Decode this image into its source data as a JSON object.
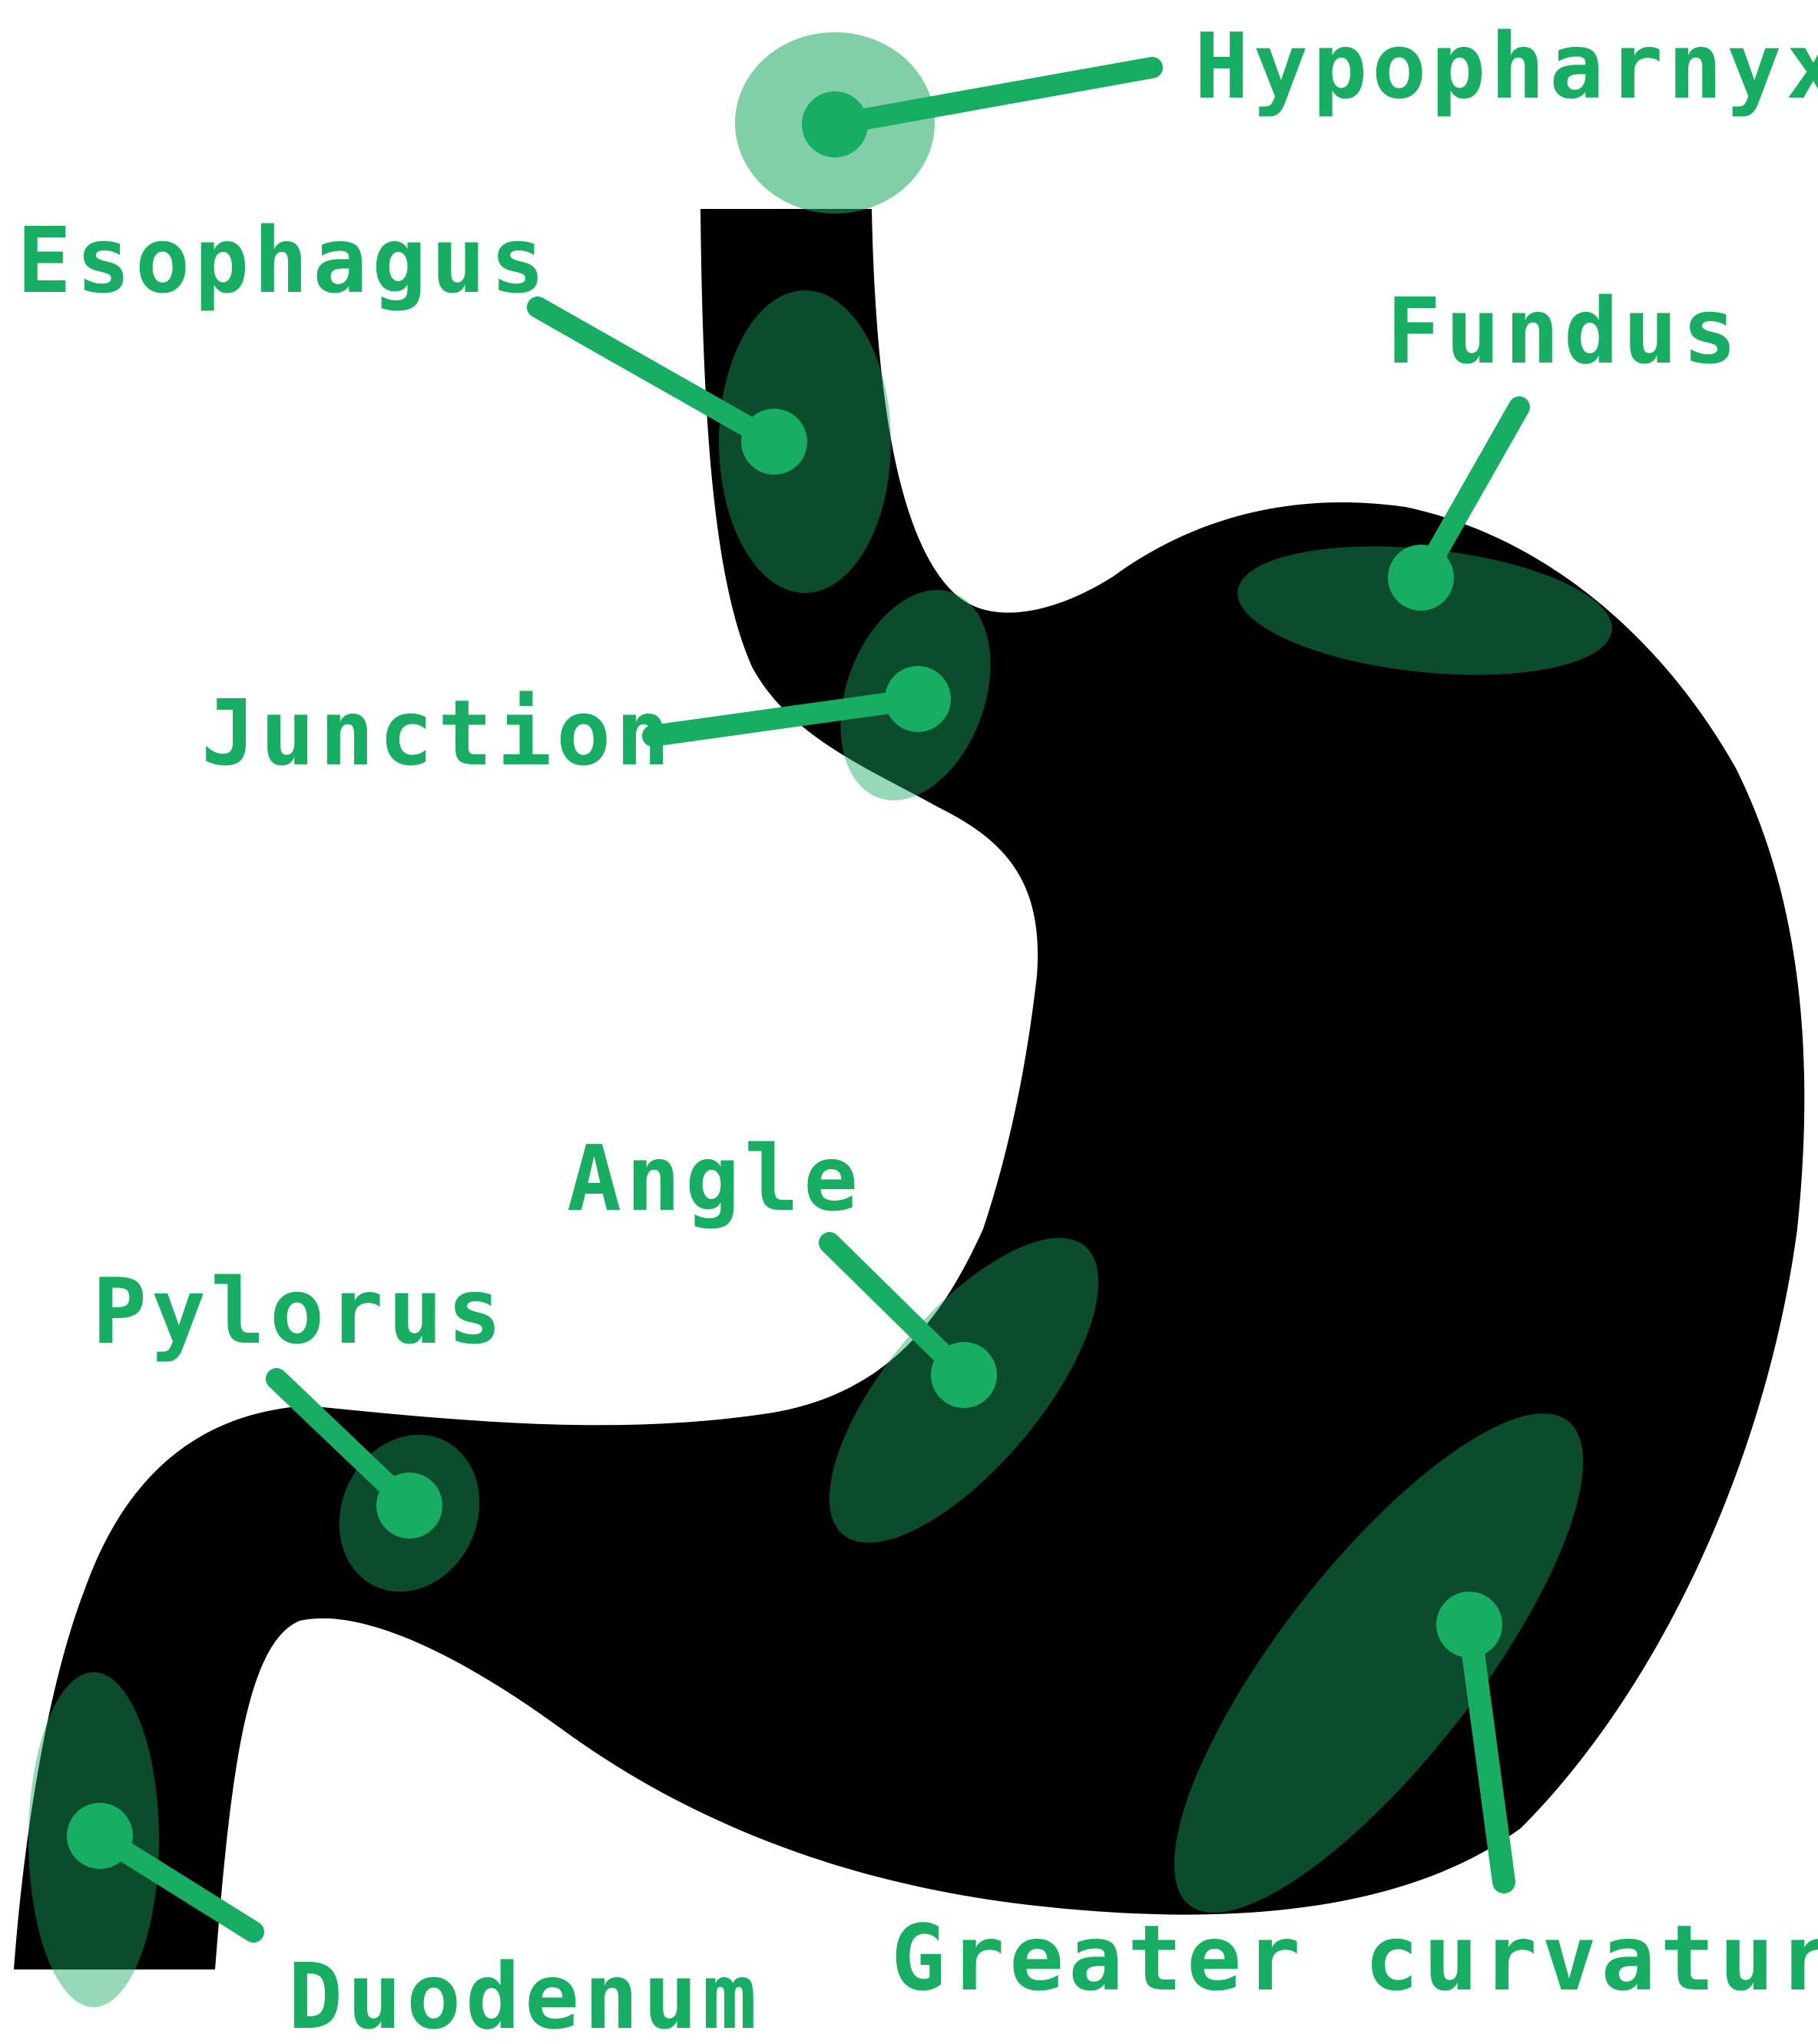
{
  "colors": {
    "organ": "#000000",
    "accent": "#17ad62",
    "region_halo": "#7fd1a8",
    "region_inside": "#175f3e",
    "background": "#ffffff"
  },
  "labels": {
    "hypopharnyx": "Hypopharnyx",
    "esophagus": "Esophagus",
    "fundus": "Fundus",
    "junction": "Junction",
    "angle": "Angle",
    "pylorus": "Pylorus",
    "greater_curvature": "Greater curvature",
    "duodenum": "Duodenum"
  }
}
